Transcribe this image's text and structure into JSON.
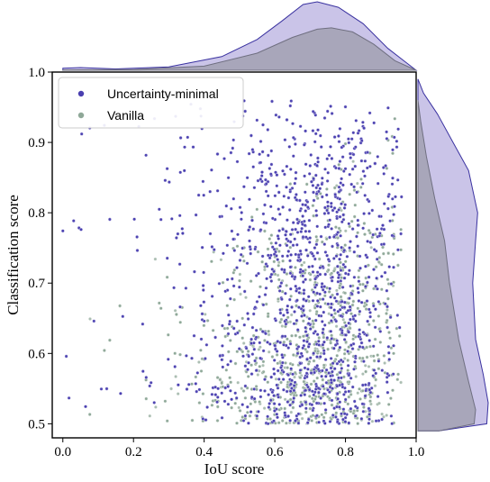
{
  "chart_data": {
    "type": "scatter",
    "title": "",
    "xlabel": "IoU score",
    "ylabel": "Classification score",
    "xlim": [
      -0.03,
      1.0
    ],
    "ylim": [
      0.48,
      1.0
    ],
    "xticks": [
      0.0,
      0.2,
      0.4,
      0.6,
      0.8,
      1.0
    ],
    "yticks": [
      0.5,
      0.6,
      0.7,
      0.8,
      0.9,
      1.0
    ],
    "grid": false,
    "legend_position": "top-left",
    "marginal_plots": "kde",
    "series": [
      {
        "name": "Uncertainty-minimal",
        "color": "#4a3fb0",
        "fill_color": "#b8b0e0",
        "point_count_approx": 9000,
        "x_density_peak": 0.7,
        "y_density_peak": 0.5,
        "cloud_center": [
          0.68,
          0.72
        ],
        "x_kde": [
          [
            0.0,
            0.03
          ],
          [
            0.05,
            0.04
          ],
          [
            0.15,
            0.02
          ],
          [
            0.3,
            0.05
          ],
          [
            0.45,
            0.2
          ],
          [
            0.55,
            0.45
          ],
          [
            0.62,
            0.72
          ],
          [
            0.68,
            0.96
          ],
          [
            0.72,
            1.0
          ],
          [
            0.78,
            0.92
          ],
          [
            0.85,
            0.68
          ],
          [
            0.92,
            0.32
          ],
          [
            0.97,
            0.12
          ],
          [
            1.0,
            0.0
          ]
        ],
        "y_kde": [
          [
            0.49,
            0.3
          ],
          [
            0.5,
            0.98
          ],
          [
            0.53,
            1.0
          ],
          [
            0.57,
            0.93
          ],
          [
            0.62,
            0.82
          ],
          [
            0.7,
            0.78
          ],
          [
            0.76,
            0.82
          ],
          [
            0.8,
            0.85
          ],
          [
            0.86,
            0.72
          ],
          [
            0.9,
            0.5
          ],
          [
            0.94,
            0.28
          ],
          [
            0.97,
            0.08
          ],
          [
            0.99,
            0.0
          ]
        ]
      },
      {
        "name": "Vanilla",
        "color": "#8fa898",
        "fill_color": "#9a9aa6",
        "point_count_approx": 11000,
        "x_density_peak": 0.76,
        "y_density_peak": 0.5,
        "cloud_center": [
          0.76,
          0.62
        ],
        "x_kde": [
          [
            0.0,
            0.005
          ],
          [
            0.2,
            0.01
          ],
          [
            0.4,
            0.06
          ],
          [
            0.55,
            0.25
          ],
          [
            0.65,
            0.48
          ],
          [
            0.72,
            0.6
          ],
          [
            0.76,
            0.62
          ],
          [
            0.82,
            0.56
          ],
          [
            0.88,
            0.38
          ],
          [
            0.94,
            0.14
          ],
          [
            1.0,
            0.0
          ]
        ],
        "y_kde": [
          [
            0.49,
            0.3
          ],
          [
            0.5,
            0.8
          ],
          [
            0.52,
            0.82
          ],
          [
            0.56,
            0.72
          ],
          [
            0.62,
            0.58
          ],
          [
            0.7,
            0.45
          ],
          [
            0.76,
            0.38
          ],
          [
            0.82,
            0.24
          ],
          [
            0.88,
            0.12
          ],
          [
            0.93,
            0.04
          ],
          [
            0.96,
            0.0
          ]
        ]
      }
    ]
  }
}
